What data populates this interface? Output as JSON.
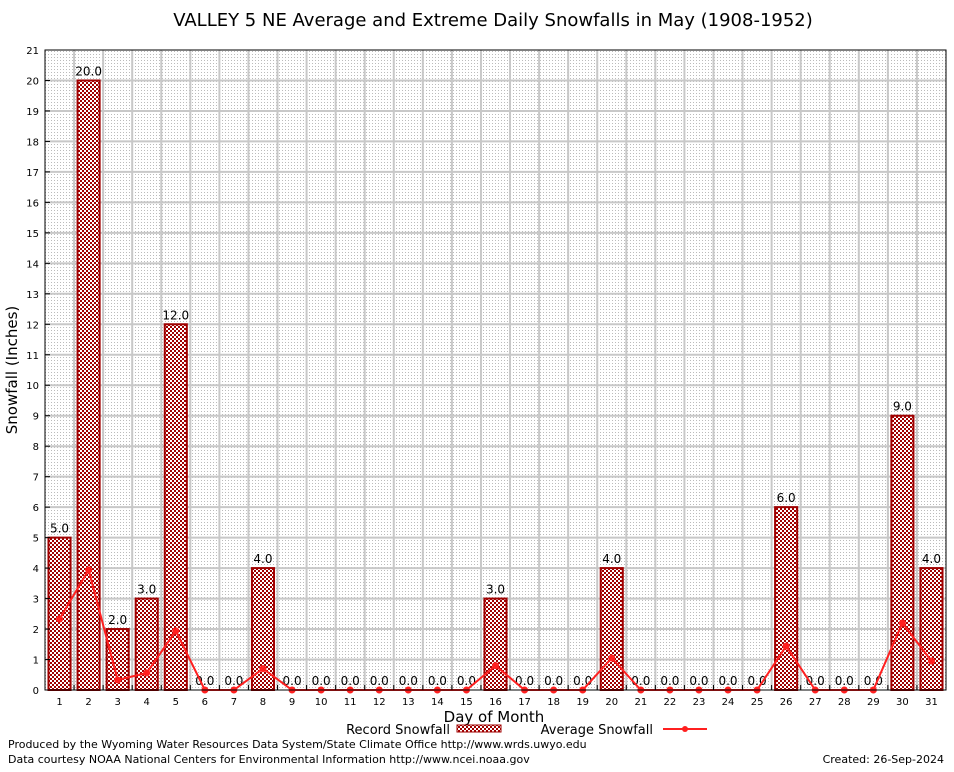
{
  "chart_data": {
    "type": "bar",
    "title": "VALLEY 5 NE Average and Extreme Daily Snowfalls in May (1908-1952)",
    "xlabel": "Day of Month",
    "ylabel": "Snowfall (Inches)",
    "ylim": [
      0,
      21
    ],
    "grid": true,
    "legend_placement": "bottom",
    "categories": [
      1,
      2,
      3,
      4,
      5,
      6,
      7,
      8,
      9,
      10,
      11,
      12,
      13,
      14,
      15,
      16,
      17,
      18,
      19,
      20,
      21,
      22,
      23,
      24,
      25,
      26,
      27,
      28,
      29,
      30,
      31
    ],
    "series": [
      {
        "name": "Record Snowfall",
        "type": "bar",
        "color": "#a00000",
        "values": [
          5.0,
          20.0,
          2.0,
          3.0,
          12.0,
          0.0,
          0.0,
          4.0,
          0.0,
          0.0,
          0.0,
          0.0,
          0.0,
          0.0,
          0.0,
          3.0,
          0.0,
          0.0,
          0.0,
          4.0,
          0.0,
          0.0,
          0.0,
          0.0,
          0.0,
          6.0,
          0.0,
          0.0,
          0.0,
          9.0,
          4.0
        ]
      },
      {
        "name": "Average Snowfall",
        "type": "line",
        "color": "#ff2020",
        "values": [
          2.33,
          3.94,
          0.33,
          0.56,
          1.94,
          0,
          0,
          0.7,
          0,
          0,
          0,
          0,
          0,
          0,
          0,
          0.8,
          0,
          0,
          0,
          1.05,
          0,
          0,
          0,
          0,
          0,
          1.44,
          0,
          0,
          0,
          2.2,
          0.95
        ]
      }
    ]
  },
  "footer": {
    "produced": "Produced by the Wyoming Water Resources Data System/State Climate Office http://www.wrds.uwyo.edu",
    "courtesy": "Data courtesy NOAA National Centers for Environmental Information http://www.ncei.noaa.gov",
    "created": "Created:  26-Sep-2024"
  }
}
